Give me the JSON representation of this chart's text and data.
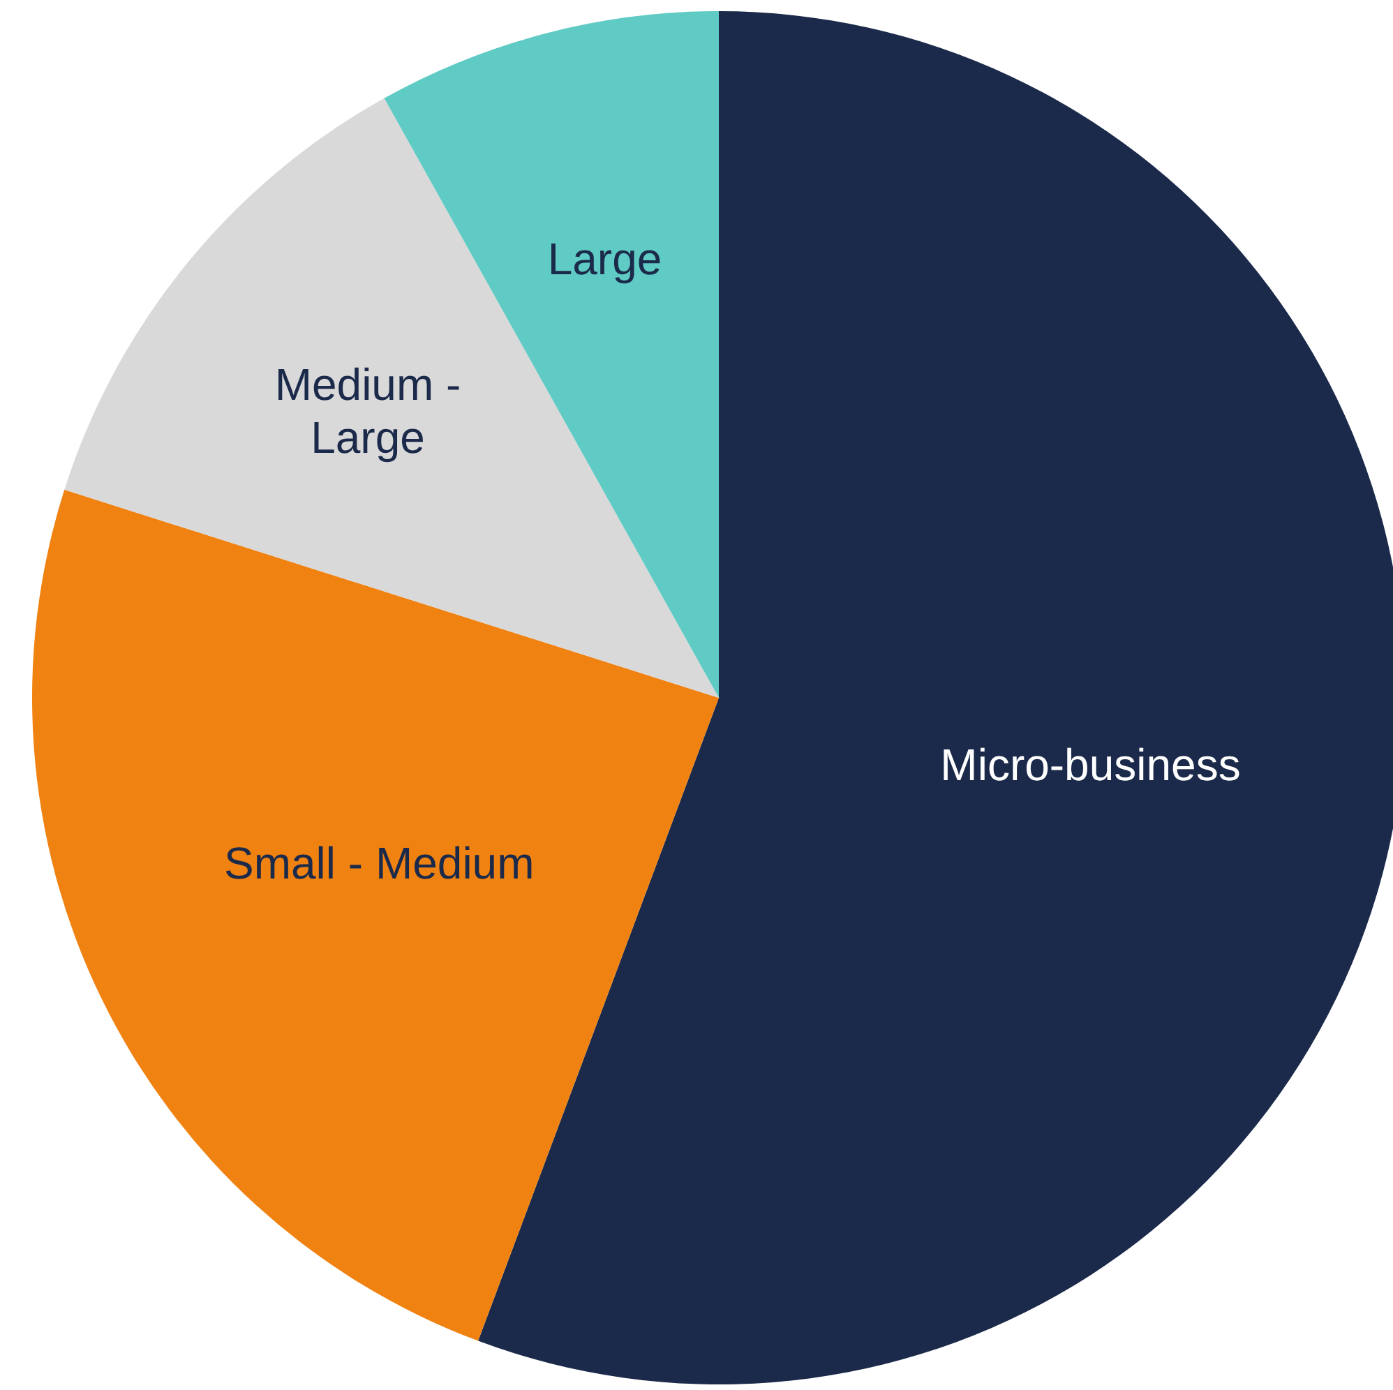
{
  "chart_data": {
    "type": "pie",
    "categories": [
      "Micro-business",
      "Small - Medium",
      "Medium - Large",
      "Large"
    ],
    "values": [
      55.7,
      24.2,
      12.0,
      8.1
    ],
    "colors": [
      "#1b2a4a",
      "#f08212",
      "#d9d9d9",
      "#5fcbc4"
    ],
    "legend": false
  }
}
